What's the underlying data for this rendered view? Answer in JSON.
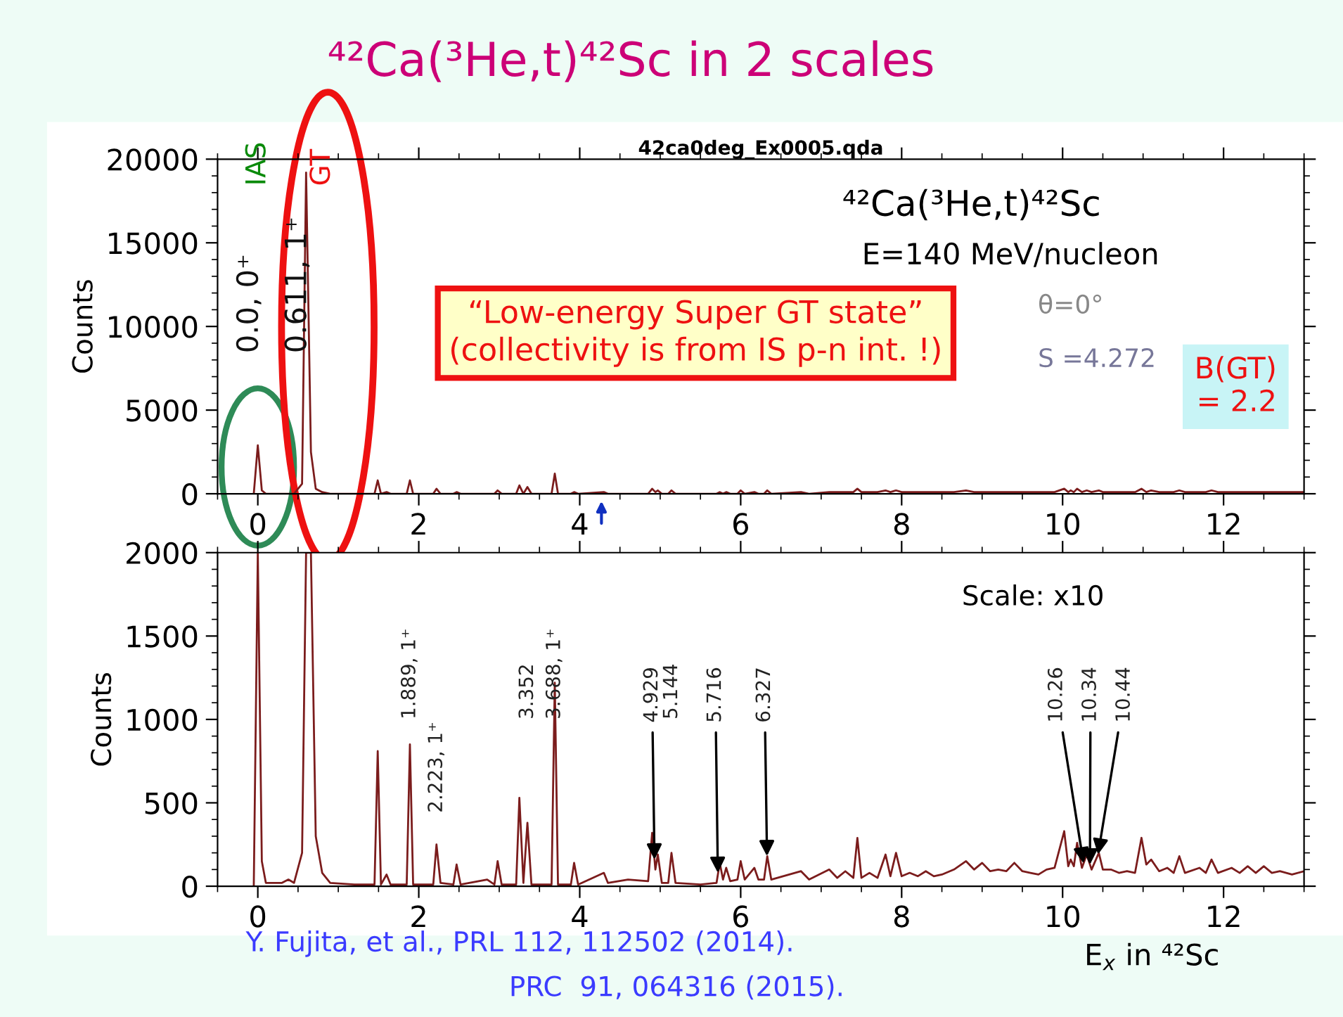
{
  "chart_data": [
    {
      "type": "line",
      "title": "⁴²Ca(³He,t)⁴²Sc in 2 scales",
      "subtitle": "42ca0deg_Ex0005.qda",
      "ylabel": "Counts",
      "x": [
        -0.05,
        0,
        0.05,
        0.1,
        0.3,
        0.38,
        0.45,
        0.55,
        0.6,
        0.66,
        0.72,
        0.8,
        0.9,
        1.2,
        1.45,
        1.49,
        1.53,
        1.6,
        1.65,
        1.85,
        1.89,
        1.93,
        2.18,
        2.22,
        2.27,
        2.43,
        2.47,
        2.52,
        2.85,
        2.94,
        2.98,
        3.03,
        3.21,
        3.25,
        3.3,
        3.35,
        3.4,
        3.65,
        3.69,
        3.73,
        3.89,
        3.93,
        3.98,
        4.3,
        4.35,
        4.6,
        4.85,
        4.9,
        4.94,
        4.97,
        5.02,
        5.1,
        5.14,
        5.19,
        5.5,
        5.7,
        5.74,
        5.78,
        5.82,
        5.87,
        5.96,
        6.0,
        6.05,
        6.17,
        6.22,
        6.29,
        6.33,
        6.38,
        6.75,
        6.85,
        7.1,
        7.2,
        7.3,
        7.4,
        7.45,
        7.5,
        7.6,
        7.7,
        7.8,
        7.86,
        7.93,
        8.0,
        8.1,
        8.2,
        8.3,
        8.4,
        8.5,
        8.65,
        8.8,
        8.9,
        9.0,
        9.1,
        9.2,
        9.3,
        9.4,
        9.5,
        9.6,
        9.7,
        9.8,
        9.9,
        10.02,
        10.07,
        10.1,
        10.14,
        10.18,
        10.24,
        10.3,
        10.36,
        10.45,
        10.5,
        10.6,
        10.7,
        10.8,
        10.9,
        10.98,
        11.04,
        11.1,
        11.2,
        11.3,
        11.38,
        11.45,
        11.52,
        11.7,
        11.78,
        11.85,
        11.93,
        12.1,
        12.2,
        12.3,
        12.4,
        12.5,
        12.6,
        12.7,
        12.85,
        13.0
      ],
      "series": [
        {
          "color": "#7b1c1c",
          "values": [
            0,
            2900,
            200,
            0,
            0,
            0,
            0,
            600,
            19200,
            2500,
            300,
            100,
            0,
            0,
            0,
            800,
            0,
            100,
            0,
            0,
            800,
            0,
            0,
            300,
            0,
            0,
            100,
            0,
            0,
            0,
            200,
            0,
            0,
            500,
            0,
            400,
            0,
            0,
            1200,
            0,
            0,
            100,
            0,
            100,
            0,
            0,
            0,
            300,
            100,
            200,
            0,
            0,
            200,
            0,
            0,
            0,
            100,
            0,
            100,
            0,
            0,
            200,
            0,
            100,
            0,
            0,
            200,
            0,
            100,
            0,
            100,
            100,
            100,
            100,
            300,
            100,
            100,
            100,
            200,
            100,
            200,
            100,
            100,
            100,
            100,
            100,
            100,
            100,
            200,
            100,
            100,
            100,
            100,
            100,
            100,
            100,
            100,
            100,
            100,
            100,
            300,
            100,
            200,
            100,
            300,
            100,
            200,
            100,
            200,
            100,
            100,
            100,
            100,
            100,
            300,
            100,
            200,
            100,
            100,
            100,
            200,
            100,
            100,
            100,
            200,
            100,
            100,
            100,
            100,
            100,
            100,
            100,
            100,
            100,
            100
          ]
        }
      ],
      "xlim": [
        -0.5,
        13
      ],
      "xticks": [
        0,
        2,
        4,
        6,
        8,
        10,
        12
      ],
      "ylim": [
        0,
        20000
      ],
      "yticks": [
        0,
        5000,
        10000,
        15000,
        20000
      ],
      "annotations": [
        "IAS",
        "GT",
        "0.0, 0⁺",
        "0.611, 1⁺",
        "⁴²Ca(³He,t)⁴²Sc",
        "E=140 MeV/nucleon",
        "θ=0°",
        "S =4.272",
        "“Low-energy Super GT state”\n(collectivity is from IS p-n int. !)",
        "B(GT)\n= 2.2"
      ]
    },
    {
      "type": "line",
      "ylabel": "Counts",
      "xlabel": "E$_{x}$ in ⁴²Sc",
      "x": [
        -0.05,
        0,
        0.05,
        0.1,
        0.3,
        0.38,
        0.45,
        0.55,
        0.6,
        0.66,
        0.72,
        0.8,
        0.9,
        1.2,
        1.45,
        1.49,
        1.53,
        1.6,
        1.65,
        1.85,
        1.89,
        1.93,
        2.18,
        2.22,
        2.27,
        2.43,
        2.47,
        2.52,
        2.85,
        2.94,
        2.98,
        3.03,
        3.21,
        3.25,
        3.3,
        3.35,
        3.4,
        3.65,
        3.69,
        3.73,
        3.89,
        3.93,
        3.98,
        4.3,
        4.35,
        4.6,
        4.85,
        4.9,
        4.94,
        4.97,
        5.02,
        5.1,
        5.14,
        5.19,
        5.5,
        5.7,
        5.74,
        5.78,
        5.82,
        5.87,
        5.96,
        6.0,
        6.05,
        6.17,
        6.22,
        6.29,
        6.33,
        6.38,
        6.75,
        6.85,
        7.1,
        7.2,
        7.3,
        7.4,
        7.45,
        7.5,
        7.6,
        7.7,
        7.8,
        7.86,
        7.93,
        8.0,
        8.1,
        8.2,
        8.3,
        8.4,
        8.5,
        8.65,
        8.8,
        8.9,
        9.0,
        9.1,
        9.2,
        9.3,
        9.4,
        9.5,
        9.6,
        9.7,
        9.8,
        9.9,
        10.02,
        10.07,
        10.1,
        10.14,
        10.18,
        10.24,
        10.3,
        10.36,
        10.45,
        10.5,
        10.6,
        10.7,
        10.8,
        10.9,
        10.98,
        11.04,
        11.1,
        11.2,
        11.3,
        11.38,
        11.45,
        11.52,
        11.7,
        11.78,
        11.85,
        11.93,
        12.1,
        12.2,
        12.3,
        12.4,
        12.5,
        12.6,
        12.7,
        12.85,
        13.0
      ],
      "series": [
        {
          "color": "#7b1c1c",
          "values": [
            0,
            2000,
            150,
            20,
            20,
            40,
            20,
            200,
            2000,
            2000,
            300,
            80,
            20,
            10,
            10,
            810,
            10,
            70,
            10,
            10,
            850,
            10,
            10,
            250,
            20,
            10,
            130,
            10,
            40,
            10,
            150,
            10,
            10,
            530,
            20,
            380,
            10,
            10,
            1220,
            10,
            10,
            140,
            10,
            80,
            20,
            40,
            30,
            320,
            100,
            190,
            20,
            20,
            200,
            20,
            10,
            20,
            140,
            40,
            110,
            30,
            40,
            150,
            40,
            110,
            40,
            40,
            180,
            40,
            90,
            40,
            100,
            50,
            90,
            50,
            290,
            50,
            80,
            50,
            190,
            60,
            200,
            60,
            80,
            60,
            90,
            60,
            70,
            100,
            150,
            100,
            140,
            90,
            100,
            90,
            140,
            90,
            80,
            70,
            100,
            110,
            330,
            120,
            160,
            120,
            260,
            110,
            190,
            100,
            200,
            100,
            100,
            80,
            90,
            80,
            290,
            130,
            160,
            90,
            110,
            80,
            180,
            80,
            110,
            80,
            160,
            80,
            110,
            80,
            120,
            80,
            120,
            80,
            90,
            70,
            90
          ]
        }
      ],
      "xlim": [
        -0.5,
        13
      ],
      "xticks": [
        0,
        2,
        4,
        6,
        8,
        10,
        12
      ],
      "ylim": [
        0,
        2000
      ],
      "yticks": [
        0,
        500,
        1000,
        1500,
        2000
      ],
      "annotations": [
        "Scale: x10",
        "1.889, 1⁺",
        "2.223, 1⁺",
        "3.352",
        "3.688, 1⁺",
        {
          "text": "4.929",
          "x": 4.929,
          "y": 160
        },
        "5.144",
        {
          "text": "5.716",
          "x": 5.716,
          "y": 80
        },
        {
          "text": "6.327",
          "x": 6.327,
          "y": 180
        },
        {
          "text": "10.26",
          "x": 10.26,
          "y": 137
        },
        {
          "text": "10.34",
          "x": 10.34,
          "y": 130
        },
        {
          "text": "10.44",
          "x": 10.44,
          "y": 190
        },
        "Y. Fujita, et al., PRL 112, 112502 (2014).",
        "PRC  91, 064316 (2015)."
      ]
    }
  ]
}
